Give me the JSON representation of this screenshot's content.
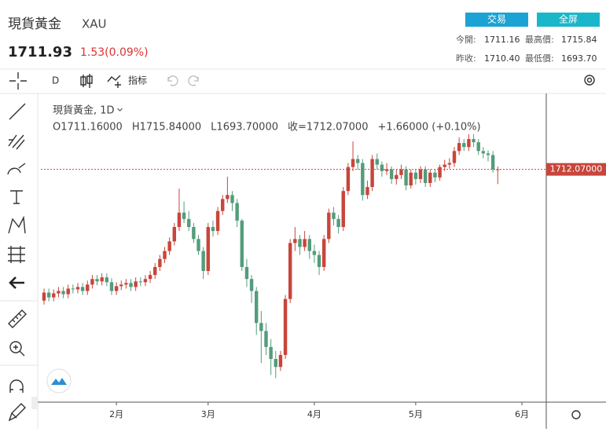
{
  "header": {
    "name": "現貨黃金",
    "symbol": "XAU",
    "price": "1711.93",
    "change": "1.53(0.09%)"
  },
  "buttons": [
    "交易",
    "全屏"
  ],
  "stats": [
    {
      "label": "今開:",
      "value": "1711.16"
    },
    {
      "label": "最高價:",
      "value": "1715.84"
    },
    {
      "label": "昨收:",
      "value": "1710.40"
    },
    {
      "label": "最低價:",
      "value": "1693.70"
    }
  ],
  "toolbar": {
    "interval": "D",
    "indicators": "指标"
  },
  "chart_data": {
    "type": "candlestick",
    "title": "現貨黃金, 1D",
    "legend": [
      {
        "label": "O",
        "value": "1711.16000"
      },
      {
        "label": "H",
        "value": "1715.84000"
      },
      {
        "label": "L",
        "value": "1693.70000"
      },
      {
        "label": "收=",
        "value": "1712.07000"
      }
    ],
    "legend_change": "+1.66000 (+0.10%)",
    "open": [
      1548,
      1558,
      1552,
      1557,
      1560,
      1556,
      1563,
      1562,
      1565,
      1560,
      1568,
      1575,
      1572,
      1577,
      1571,
      1560,
      1566,
      1568,
      1570,
      1565,
      1572,
      1571,
      1575,
      1580,
      1590,
      1600,
      1610,
      1622,
      1640,
      1658,
      1650,
      1640,
      1625,
      1610,
      1585,
      1640,
      1635,
      1660,
      1675,
      1680,
      1670,
      1648,
      1590,
      1575,
      1560,
      1520,
      1510,
      1490,
      1475,
      1465,
      1480,
      1550,
      1620,
      1625,
      1615,
      1625,
      1610,
      1605,
      1590,
      1625,
      1658,
      1650,
      1640,
      1685,
      1715,
      1725,
      1720,
      1680,
      1690,
      1725,
      1718,
      1710,
      1712,
      1700,
      1705,
      1712,
      1692,
      1708,
      1700,
      1712,
      1695,
      1708,
      1702,
      1715,
      1718,
      1720,
      1735,
      1745,
      1740,
      1750,
      1746,
      1735,
      1732,
      1730,
      1711.16
    ],
    "high": [
      1563,
      1563,
      1562,
      1565,
      1565,
      1568,
      1568,
      1570,
      1570,
      1573,
      1580,
      1580,
      1582,
      1582,
      1576,
      1571,
      1573,
      1575,
      1575,
      1577,
      1577,
      1580,
      1585,
      1595,
      1605,
      1615,
      1627,
      1645,
      1688,
      1672,
      1660,
      1645,
      1630,
      1615,
      1645,
      1648,
      1665,
      1680,
      1703,
      1685,
      1675,
      1650,
      1600,
      1580,
      1565,
      1535,
      1520,
      1500,
      1485,
      1485,
      1555,
      1625,
      1640,
      1630,
      1635,
      1630,
      1618,
      1610,
      1630,
      1663,
      1665,
      1655,
      1690,
      1720,
      1747,
      1730,
      1725,
      1698,
      1730,
      1732,
      1722,
      1720,
      1716,
      1712,
      1718,
      1716,
      1712,
      1712,
      1716,
      1716,
      1712,
      1712,
      1718,
      1724,
      1726,
      1740,
      1752,
      1750,
      1756,
      1756,
      1750,
      1740,
      1736,
      1735,
      1715.84
    ],
    "low": [
      1543,
      1547,
      1547,
      1552,
      1551,
      1551,
      1557,
      1557,
      1555,
      1555,
      1563,
      1567,
      1567,
      1566,
      1555,
      1555,
      1561,
      1563,
      1560,
      1560,
      1566,
      1566,
      1570,
      1575,
      1585,
      1595,
      1605,
      1617,
      1635,
      1645,
      1635,
      1620,
      1605,
      1575,
      1580,
      1628,
      1630,
      1655,
      1670,
      1660,
      1640,
      1585,
      1565,
      1545,
      1505,
      1470,
      1480,
      1455,
      1451,
      1460,
      1475,
      1545,
      1610,
      1605,
      1610,
      1600,
      1595,
      1580,
      1585,
      1620,
      1642,
      1632,
      1635,
      1680,
      1710,
      1712,
      1673,
      1675,
      1685,
      1712,
      1703,
      1705,
      1694,
      1693,
      1700,
      1686,
      1688,
      1693,
      1695,
      1690,
      1690,
      1696,
      1698,
      1710,
      1713,
      1715,
      1730,
      1735,
      1735,
      1740,
      1730,
      1726,
      1722,
      1708,
      1693.7
    ],
    "close": [
      1558,
      1552,
      1557,
      1560,
      1556,
      1563,
      1562,
      1565,
      1560,
      1568,
      1575,
      1572,
      1577,
      1571,
      1560,
      1566,
      1568,
      1570,
      1565,
      1572,
      1571,
      1575,
      1580,
      1590,
      1600,
      1610,
      1622,
      1640,
      1658,
      1650,
      1640,
      1625,
      1610,
      1585,
      1640,
      1635,
      1660,
      1675,
      1680,
      1670,
      1648,
      1590,
      1575,
      1560,
      1520,
      1510,
      1490,
      1475,
      1465,
      1480,
      1550,
      1620,
      1625,
      1615,
      1625,
      1610,
      1605,
      1590,
      1625,
      1658,
      1650,
      1640,
      1685,
      1715,
      1725,
      1720,
      1680,
      1690,
      1725,
      1718,
      1710,
      1712,
      1700,
      1705,
      1712,
      1692,
      1708,
      1700,
      1712,
      1695,
      1708,
      1702,
      1715,
      1718,
      1720,
      1735,
      1745,
      1740,
      1750,
      1746,
      1735,
      1732,
      1730,
      1712,
      1712.07
    ],
    "ylim": [
      1421,
      1806
    ],
    "xlim": [
      -0.65,
      104.05
    ],
    "xticks": [
      {
        "value": 15,
        "label": "2月"
      },
      {
        "value": 34,
        "label": "3月"
      },
      {
        "value": 56,
        "label": "4月"
      },
      {
        "value": 77,
        "label": "5月"
      },
      {
        "value": 99,
        "label": "6月"
      }
    ],
    "up_color": "#c8453b",
    "down_color": "#539c7c",
    "price_line": {
      "value": 1712.07,
      "label": "1712.07000"
    },
    "grid": false
  }
}
